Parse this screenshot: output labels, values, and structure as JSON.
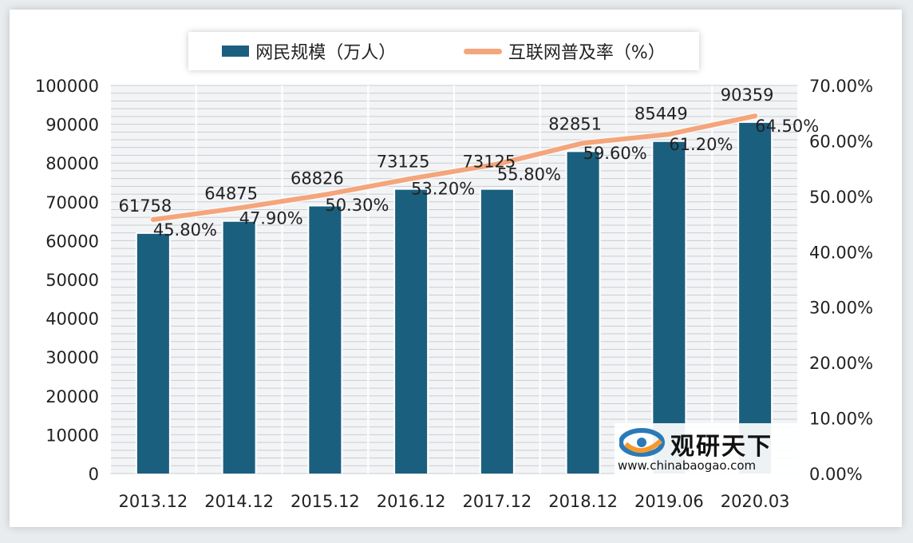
{
  "legend": {
    "bar_label": "网民规模（万人）",
    "line_label": "互联网普及率（%）"
  },
  "watermark": {
    "name": "观研天下",
    "url": "www.chinabaogao.com"
  },
  "colors": {
    "bar": "#1b5f7f",
    "line": "#f4a57c",
    "grid": "#c9cdd2"
  },
  "chart_data": {
    "type": "bar",
    "categories": [
      "2013.12",
      "2014.12",
      "2015.12",
      "2016.12",
      "2017.12",
      "2018.12",
      "2019.06",
      "2020.03"
    ],
    "series": [
      {
        "name": "网民规模（万人）",
        "type": "bar",
        "axis": "left",
        "values": [
          61758,
          64875,
          68826,
          73125,
          73125,
          82851,
          85449,
          90359
        ],
        "labels": [
          "61758",
          "64875",
          "68826",
          "73125",
          "73125",
          "82851",
          "85449",
          "90359"
        ]
      },
      {
        "name": "互联网普及率（%）",
        "type": "line",
        "axis": "right",
        "values": [
          45.8,
          47.9,
          50.3,
          53.2,
          55.8,
          59.6,
          61.2,
          64.5
        ],
        "labels": [
          "45.80%",
          "47.90%",
          "50.30%",
          "53.20%",
          "55.80%",
          "59.60%",
          "61.20%",
          "64.50%"
        ]
      }
    ],
    "y_left": {
      "ylim": [
        0,
        100000
      ],
      "ticks": [
        "0",
        "10000",
        "20000",
        "30000",
        "40000",
        "50000",
        "60000",
        "70000",
        "80000",
        "90000",
        "100000"
      ]
    },
    "y_right": {
      "ylim": [
        0,
        70
      ],
      "ticks": [
        "0.00%",
        "10.00%",
        "20.00%",
        "30.00%",
        "40.00%",
        "50.00%",
        "60.00%",
        "70.00%"
      ]
    },
    "grid": true,
    "legend_position": "top"
  }
}
